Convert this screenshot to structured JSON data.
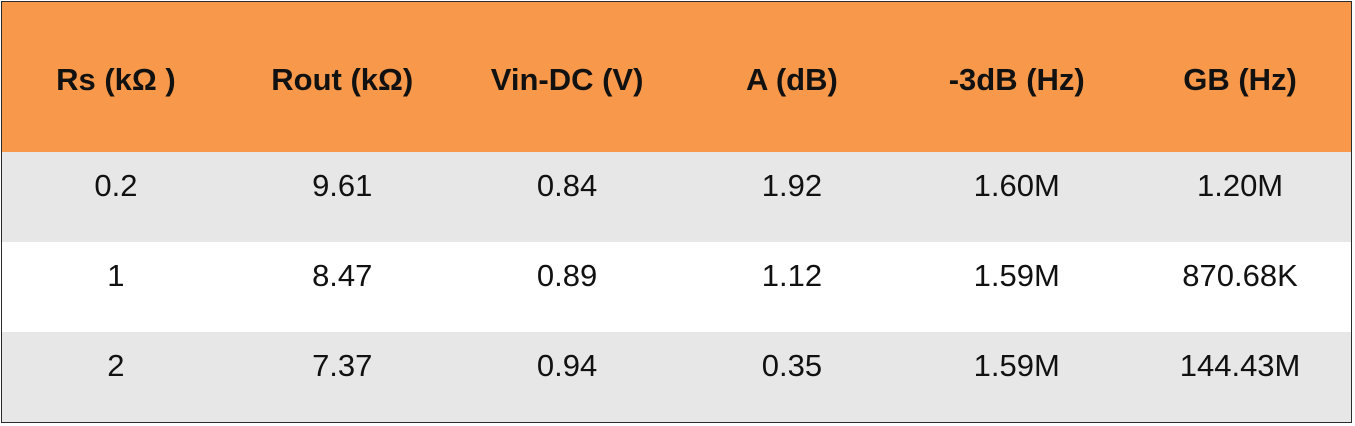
{
  "table": {
    "headers": [
      "Rs (kΩ )",
      "Rout (kΩ)",
      "Vin-DC (V)",
      "A (dB)",
      "-3dB (Hz)",
      "GB (Hz)"
    ],
    "rows": [
      [
        "0.2",
        "9.61",
        "0.84",
        "1.92",
        "1.60M",
        "1.20M"
      ],
      [
        "1",
        "8.47",
        "0.89",
        "1.12",
        "1.59M",
        "870.68K"
      ],
      [
        "2",
        "7.37",
        "0.94",
        "0.35",
        "1.59M",
        "144.43M"
      ]
    ],
    "colors": {
      "header_bg": "#f7984a",
      "shaded_row_bg": "#e7e7e7",
      "plain_row_bg": "#ffffff",
      "border": "#2b2b2b"
    }
  }
}
